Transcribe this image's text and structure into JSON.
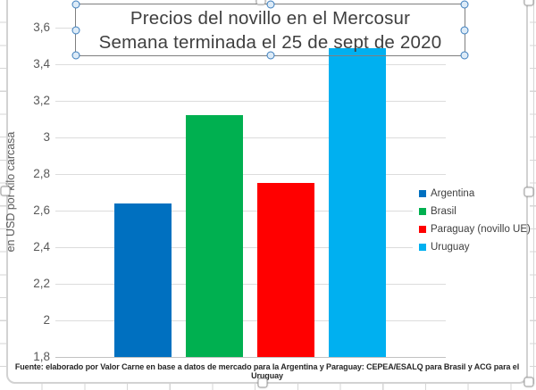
{
  "chart_data": {
    "type": "bar",
    "title": "Precios del novillo en el Mercosur",
    "subtitle": "Semana terminada el 25 de sept de 2020",
    "ylabel": "en USD por kilo carcasa",
    "categories": [
      "Argentina",
      "Brasil",
      "Paraguay (novillo UE)",
      "Uruguay"
    ],
    "values": [
      2.64,
      3.12,
      2.75,
      3.49
    ],
    "colors": [
      "#0070C0",
      "#00B050",
      "#FF0000",
      "#00B0F0"
    ],
    "ylim": [
      1.8,
      3.6
    ],
    "ytick_step": 0.2,
    "ytick_labels": [
      "3,6",
      "3,4",
      "3,2",
      "3",
      "2,8",
      "2,6",
      "2,4",
      "2,2",
      "2",
      "1,8"
    ],
    "grid": true,
    "legend_position": "right",
    "source": "Fuente: elaborado por Valor Carne en base a datos de mercado para la Argentina y Paraguay: CEPEA/ESALQ para Brasil y ACG para el Uruguay"
  }
}
